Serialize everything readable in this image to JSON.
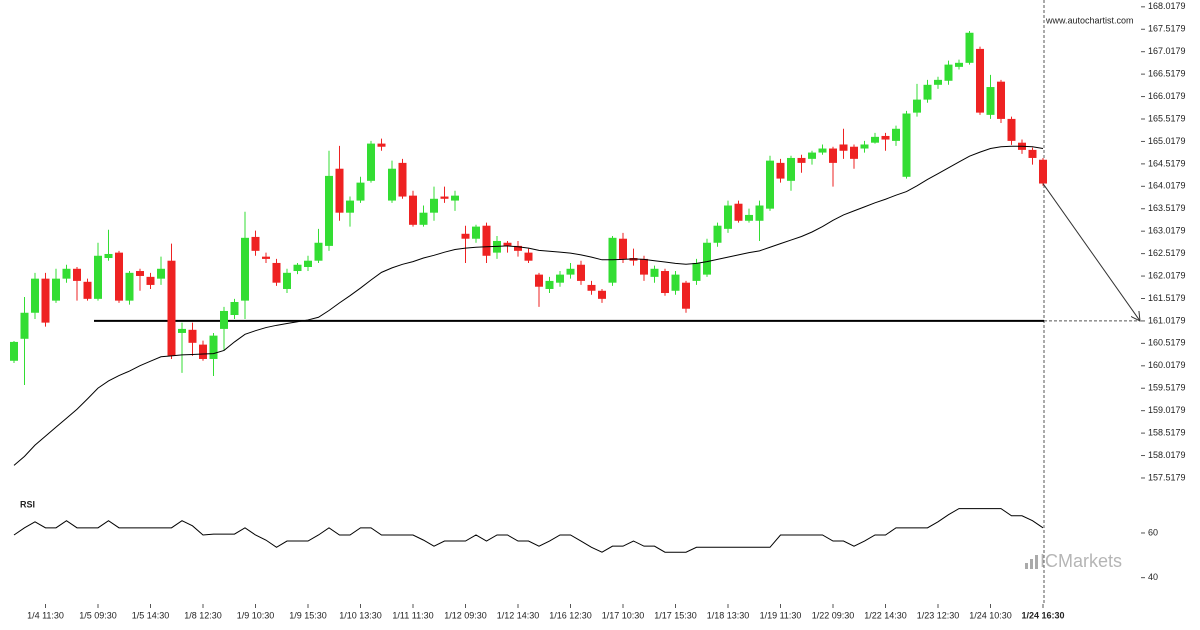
{
  "chart_data": [
    {
      "type": "candlestick",
      "watermark": "www.autochartist.com",
      "brand": "ICMarkets",
      "up_color": "#33dd33",
      "down_color": "#ee2222",
      "ylim": [
        157.25,
        168.17
      ],
      "yticks": [
        157.5179,
        158.0179,
        158.5179,
        159.0179,
        159.5179,
        160.0179,
        160.5179,
        161.0179,
        161.5179,
        162.0179,
        162.5179,
        163.0179,
        163.5179,
        164.0179,
        164.5179,
        165.0179,
        165.5179,
        166.0179,
        166.5179,
        167.0179,
        167.5179,
        168.0179
      ],
      "level": 161.0179,
      "level_color": "#000000",
      "categories": [
        null,
        null,
        null,
        "1/4 11:30",
        null,
        null,
        null,
        null,
        "1/5 09:30",
        null,
        null,
        null,
        null,
        "1/5 14:30",
        null,
        null,
        null,
        null,
        "1/8 12:30",
        null,
        null,
        null,
        null,
        "1/9 10:30",
        null,
        null,
        null,
        null,
        "1/9 15:30",
        null,
        null,
        null,
        null,
        "1/10 13:30",
        null,
        null,
        null,
        null,
        "1/11 11:30",
        null,
        null,
        null,
        null,
        "1/12 09:30",
        null,
        null,
        null,
        null,
        "1/12 14:30",
        null,
        null,
        null,
        null,
        "1/16 12:30",
        null,
        null,
        null,
        null,
        "1/17 10:30",
        null,
        null,
        null,
        null,
        "1/17 15:30",
        null,
        null,
        null,
        null,
        "1/18 13:30",
        null,
        null,
        null,
        null,
        "1/19 11:30",
        null,
        null,
        null,
        null,
        "1/22 09:30",
        null,
        null,
        null,
        null,
        "1/22 14:30",
        null,
        null,
        null,
        null,
        "1/23 12:30",
        null,
        null,
        null,
        null,
        "1/24 10:30",
        null,
        null,
        null,
        null,
        "1/24 16:30"
      ],
      "open": [
        160.13,
        160.62,
        161.2,
        161.96,
        161.47,
        161.96,
        162.18,
        161.89,
        161.51,
        162.42,
        162.54,
        161.47,
        162.13,
        162.0,
        161.96,
        162.36,
        160.75,
        160.82,
        160.49,
        160.17,
        160.84,
        161.15,
        161.47,
        162.89,
        162.45,
        162.31,
        161.73,
        162.13,
        162.22,
        162.36,
        162.69,
        164.41,
        163.43,
        163.7,
        164.14,
        164.97,
        163.7,
        164.54,
        163.81,
        163.16,
        163.43,
        163.79,
        163.7,
        162.96,
        162.85,
        163.14,
        162.54,
        162.76,
        162.69,
        162.54,
        162.05,
        161.73,
        161.87,
        162.05,
        162.27,
        161.82,
        161.69,
        161.87,
        162.85,
        162.42,
        162.4,
        162.0,
        162.13,
        161.69,
        161.87,
        161.91,
        162.05,
        162.76,
        163.07,
        163.63,
        163.25,
        163.25,
        163.52,
        164.54,
        164.14,
        164.65,
        164.63,
        164.77,
        164.86,
        164.95,
        164.9,
        164.86,
        164.99,
        165.14,
        165.03,
        164.23,
        165.66,
        165.95,
        166.28,
        166.37,
        166.68,
        166.77,
        167.08,
        165.61,
        166.35,
        165.52,
        164.99,
        164.83,
        164.61
      ],
      "high": [
        160.57,
        161.55,
        162.09,
        162.09,
        162.18,
        162.27,
        162.22,
        161.96,
        162.76,
        163.05,
        162.58,
        162.13,
        162.18,
        162.09,
        162.45,
        162.74,
        160.98,
        160.98,
        160.58,
        160.75,
        161.33,
        161.51,
        163.45,
        163.03,
        162.54,
        162.4,
        162.18,
        162.31,
        162.47,
        163.07,
        164.81,
        164.92,
        163.79,
        164.23,
        165.03,
        165.08,
        164.59,
        164.63,
        163.92,
        163.59,
        164.01,
        164.01,
        163.92,
        163.14,
        163.16,
        163.21,
        162.91,
        162.8,
        162.8,
        162.63,
        162.09,
        162.0,
        162.13,
        162.31,
        162.36,
        161.91,
        161.73,
        162.91,
        162.98,
        162.63,
        162.47,
        162.25,
        162.18,
        162.13,
        161.91,
        162.4,
        162.85,
        163.21,
        163.7,
        163.7,
        163.52,
        163.7,
        164.7,
        164.63,
        164.7,
        164.72,
        164.81,
        164.95,
        164.9,
        165.3,
        164.95,
        165.03,
        165.21,
        165.21,
        165.37,
        165.7,
        166.3,
        166.39,
        166.46,
        166.82,
        166.84,
        167.48,
        167.13,
        166.5,
        166.39,
        165.57,
        165.06,
        164.88,
        164.65
      ],
      "low": [
        160.08,
        159.59,
        161.06,
        160.89,
        161.42,
        161.87,
        161.47,
        161.47,
        161.47,
        162.36,
        161.42,
        161.38,
        161.69,
        161.73,
        161.82,
        160.17,
        159.86,
        160.24,
        160.13,
        159.79,
        160.35,
        161.06,
        161.06,
        162.47,
        162.31,
        161.8,
        161.64,
        162.06,
        162.13,
        162.31,
        162.58,
        163.25,
        163.12,
        163.65,
        164.1,
        164.81,
        163.65,
        163.74,
        163.12,
        163.12,
        163.25,
        163.65,
        163.47,
        162.31,
        162.76,
        162.31,
        162.4,
        162.54,
        162.45,
        162.31,
        161.33,
        161.64,
        161.78,
        161.96,
        161.82,
        161.6,
        161.42,
        161.8,
        162.31,
        162.25,
        161.91,
        161.87,
        161.58,
        161.6,
        161.2,
        161.82,
        162.0,
        162.67,
        162.98,
        163.21,
        163.21,
        162.8,
        163.47,
        164.1,
        163.92,
        164.32,
        164.5,
        164.72,
        164.01,
        164.63,
        164.41,
        164.77,
        164.97,
        164.81,
        164.92,
        164.19,
        165.57,
        165.88,
        166.19,
        166.28,
        166.62,
        166.73,
        165.61,
        165.52,
        165.43,
        164.94,
        164.74,
        164.5,
        164.03
      ],
      "close": [
        160.55,
        161.2,
        161.96,
        160.98,
        161.96,
        162.18,
        161.91,
        161.51,
        162.47,
        162.51,
        161.47,
        162.09,
        162.02,
        161.82,
        162.18,
        160.24,
        160.84,
        160.53,
        160.17,
        160.69,
        161.24,
        161.44,
        162.87,
        162.58,
        162.4,
        161.87,
        162.09,
        162.27,
        162.36,
        162.76,
        164.25,
        163.43,
        163.7,
        164.1,
        164.97,
        164.9,
        164.41,
        163.79,
        163.16,
        163.43,
        163.74,
        163.74,
        163.81,
        162.85,
        163.12,
        162.47,
        162.8,
        162.69,
        162.58,
        162.36,
        161.78,
        161.91,
        162.05,
        162.18,
        161.91,
        161.69,
        161.51,
        162.87,
        162.4,
        162.36,
        162.05,
        162.18,
        161.64,
        162.05,
        161.29,
        162.31,
        162.76,
        163.14,
        163.59,
        163.25,
        163.38,
        163.59,
        164.59,
        164.19,
        164.65,
        164.54,
        164.77,
        164.86,
        164.54,
        164.81,
        164.63,
        164.95,
        165.12,
        165.06,
        165.3,
        165.64,
        165.95,
        166.28,
        166.39,
        166.73,
        166.77,
        167.44,
        165.66,
        166.23,
        165.52,
        165.03,
        164.83,
        164.65,
        164.08
      ],
      "ma": {
        "color": "#000000",
        "values": [
          157.8,
          158.0,
          158.25,
          158.45,
          158.65,
          158.85,
          159.05,
          159.28,
          159.52,
          159.68,
          159.8,
          159.9,
          160.02,
          160.12,
          160.22,
          160.24,
          160.26,
          160.27,
          160.28,
          160.29,
          160.36,
          160.55,
          160.72,
          160.8,
          160.87,
          160.92,
          160.96,
          161.0,
          161.04,
          161.1,
          161.25,
          161.42,
          161.58,
          161.75,
          161.93,
          162.1,
          162.2,
          162.28,
          162.34,
          162.42,
          162.48,
          162.55,
          162.61,
          162.64,
          162.66,
          162.67,
          162.68,
          162.69,
          162.67,
          162.64,
          162.59,
          162.57,
          162.55,
          162.53,
          162.49,
          162.44,
          162.38,
          162.38,
          162.39,
          162.4,
          162.39,
          162.36,
          162.33,
          162.3,
          162.28,
          162.3,
          162.34,
          162.39,
          162.44,
          162.49,
          162.54,
          162.58,
          162.66,
          162.74,
          162.82,
          162.9,
          163.0,
          163.12,
          163.26,
          163.38,
          163.47,
          163.56,
          163.65,
          163.73,
          163.82,
          163.9,
          164.03,
          164.17,
          164.3,
          164.43,
          164.56,
          164.69,
          164.78,
          164.86,
          164.9,
          164.91,
          164.91,
          164.9,
          164.86
        ]
      }
    },
    {
      "type": "line",
      "title": "RSI",
      "color": "#000000",
      "ylim": [
        30,
        77
      ],
      "yticks": [
        40,
        60
      ],
      "values": [
        59.1,
        62.3,
        65.0,
        62.3,
        62.3,
        65.5,
        62.3,
        62.3,
        62.3,
        65.5,
        62.3,
        62.3,
        62.3,
        62.3,
        62.3,
        62.3,
        65.5,
        63.2,
        59.1,
        59.5,
        59.5,
        59.5,
        62.3,
        59.1,
        56.8,
        53.6,
        56.4,
        56.4,
        56.4,
        59.1,
        62.3,
        59.1,
        59.1,
        62.3,
        62.3,
        59.1,
        59.1,
        59.1,
        59.1,
        56.8,
        54.1,
        56.4,
        56.4,
        56.4,
        59.1,
        56.4,
        59.1,
        59.1,
        56.4,
        56.4,
        54.1,
        56.4,
        59.1,
        59.1,
        56.4,
        53.6,
        51.4,
        54.1,
        54.1,
        56.4,
        54.1,
        54.1,
        51.4,
        51.4,
        51.4,
        53.6,
        53.6,
        53.6,
        53.6,
        53.6,
        53.6,
        53.6,
        53.6,
        59.1,
        59.1,
        59.1,
        59.1,
        59.1,
        56.4,
        56.4,
        54.1,
        56.4,
        59.1,
        59.1,
        62.3,
        62.3,
        62.3,
        62.3,
        65.0,
        68.2,
        70.9,
        70.9,
        70.9,
        70.9,
        70.9,
        67.7,
        67.7,
        65.5,
        62.3
      ]
    }
  ]
}
